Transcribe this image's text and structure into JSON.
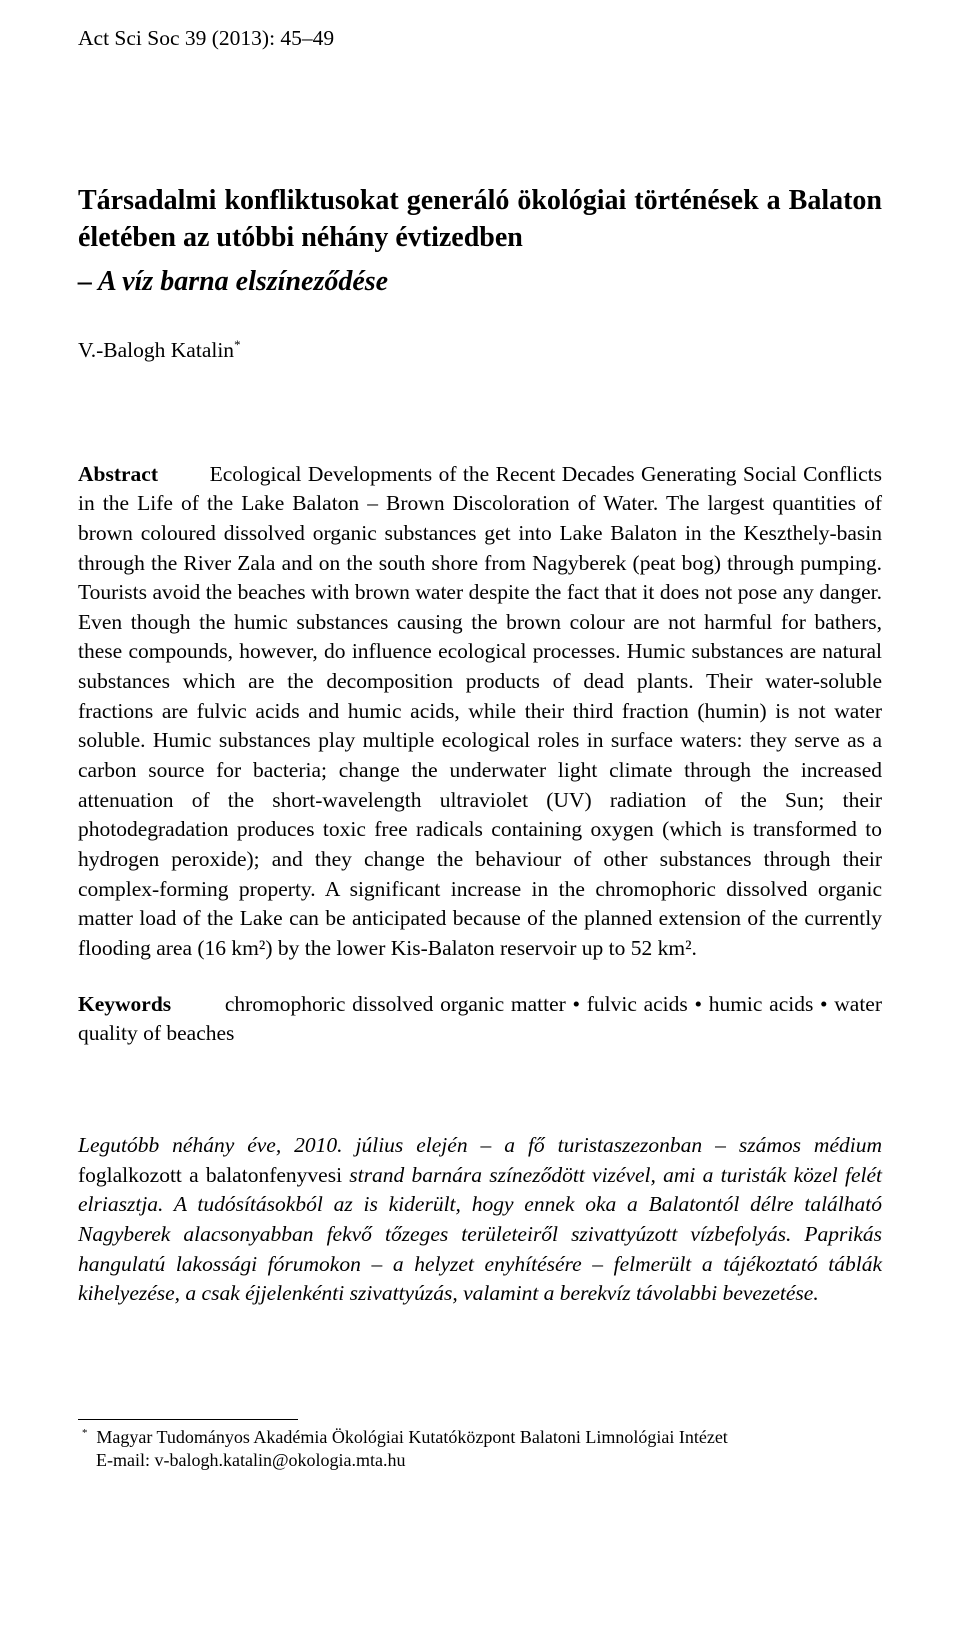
{
  "journal_ref": "Act Sci Soc 39 (2013): 45–49",
  "title": "Társadalmi konfliktusokat generáló ökológiai történések a Balaton életében az utóbbi néhány évtizedben",
  "subtitle": "– A víz barna elszíneződése",
  "author_name": "V.-Balogh Katalin",
  "author_marker": "*",
  "abstract_label": "Abstract",
  "abstract_heading_inline": "Ecological Developments of the Recent Decades Generating Social Conflicts in the Life of the Lake Balaton – Brown Discoloration of Water.",
  "abstract_body": "The largest quantities of brown coloured dissolved organic substances get into Lake Balaton in the Keszthely-basin through the River Zala and on the south shore from Nagyberek (peat bog) through pumping. Tourists avoid the beaches with brown water despite the fact that it does not pose any danger. Even though the humic substances causing the brown colour are not harmful for bathers, these compounds, however, do influence ecological processes. Humic substances are natural substances which are the decomposition products of dead plants. Their water-soluble fractions are fulvic acids and humic acids, while their third fraction (humin) is not water soluble. Humic substances play multiple ecological roles in surface waters: they serve as a carbon source for bacteria; change the underwater light climate through the increased attenuation of the short-wavelength ultraviolet (UV) radiation of the Sun; their photodegradation produces toxic free radicals containing oxygen (which is transformed to hydrogen peroxide); and they change the behaviour of other substances through their complex-forming property. A significant increase in the chromophoric dissolved organic matter load of the Lake can be anticipated because of the planned extension of the currently flooding area (16 km²) by the lower Kis-Balaton reservoir up to 52 km².",
  "keywords_label": "Keywords",
  "keywords_text": "chromophoric dissolved organic matter • fulvic acids • humic acids • water quality of beaches",
  "narrative_pre": "Legutóbb néhány éve, 2010. július elején – a fő turistaszezonban – számos médium ",
  "narrative_roman1": "foglalkozott a balatonfenyvesi ",
  "narrative_mid1": "strand barnára színeződött vizével, ami a turisták közel felét elriasztja. A tudósításokból az is kiderült, hogy ennek oka a Balatontól délre található Nagyberek alacsonyabban fekvő tőzeges területeiről szivattyúzott vízbefolyás. Paprikás hangulatú lakossági fórumokon – a helyzet enyhítésére – felmerült a tájékoztató táblák kihelyezése, a csak éjjelenkénti szivattyúzás, valamint a berekvíz távolabbi bevezetése.",
  "footnote_marker": "*",
  "footnote_affiliation": "Magyar Tudományos Akadémia Ökológiai Kutatóközpont Balatoni Limnológiai Intézet",
  "footnote_email_label": "E-mail: ",
  "footnote_email": "v-balogh.katalin@okologia.mta.hu"
}
